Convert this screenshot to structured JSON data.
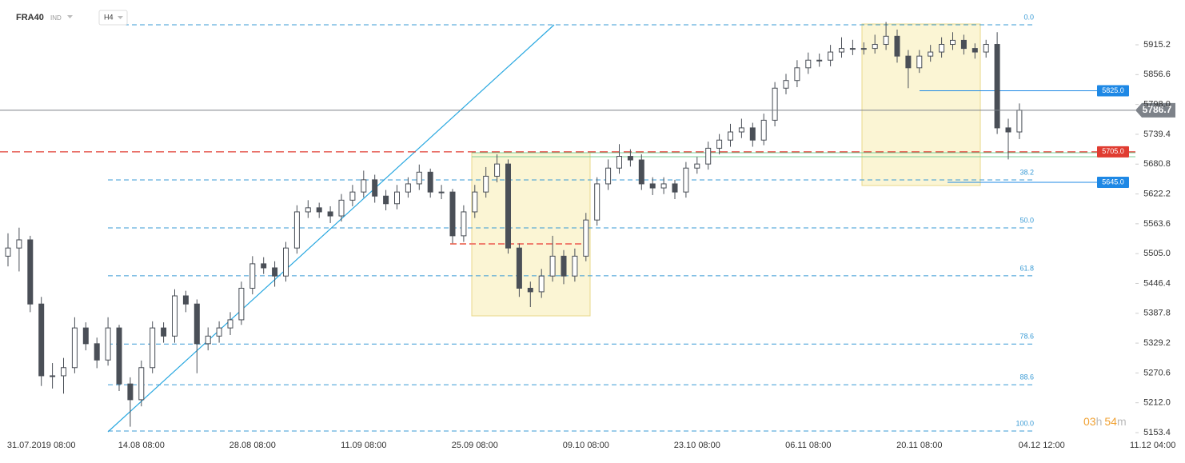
{
  "chart_data": {
    "type": "candlestick",
    "symbol": "FRA40",
    "market": "IND",
    "interval": "H4",
    "categories": [
      null,
      null,
      null,
      "31.07.2019 08:00",
      null,
      null,
      null,
      null,
      null,
      null,
      null,
      null,
      "14.08 08:00",
      null,
      null,
      null,
      null,
      null,
      null,
      null,
      null,
      null,
      "28.08 08:00",
      null,
      null,
      null,
      null,
      null,
      null,
      null,
      null,
      null,
      "11.09 08:00",
      null,
      null,
      null,
      null,
      null,
      null,
      null,
      null,
      null,
      "25.09 08:00",
      null,
      null,
      null,
      null,
      null,
      null,
      null,
      null,
      null,
      "09.10 08:00",
      null,
      null,
      null,
      null,
      null,
      null,
      null,
      null,
      null,
      "23.10 08:00",
      null,
      null,
      null,
      null,
      null,
      null,
      null,
      null,
      null,
      "06.11 08:00",
      null,
      null,
      null,
      null,
      null,
      null,
      null,
      null,
      null,
      "20.11 08:00",
      null,
      null,
      null,
      null,
      null,
      null,
      null,
      null,
      null,
      null,
      "04.12 12:00",
      null,
      null,
      null,
      null,
      null,
      null,
      null,
      null,
      null,
      "11.12 04:00"
    ],
    "open": [
      5500,
      5516,
      5532,
      5406,
      5265,
      5265,
      5281,
      5359,
      5328,
      5296,
      5359,
      5249,
      5218,
      5281,
      5359,
      5343,
      5422,
      5406,
      5328,
      5343,
      5359,
      5375,
      5437,
      5485,
      5477,
      5461,
      5516,
      5587,
      5595,
      5587,
      5579,
      5610,
      5626,
      5650,
      5618,
      5603,
      5626,
      5642,
      5665,
      5626,
      5626,
      5540,
      5587,
      5626,
      5657,
      5681,
      5516,
      5437,
      5430,
      5461,
      5500,
      5461,
      5500,
      5571,
      5642,
      5673,
      5696,
      5689,
      5642,
      5634,
      5642,
      5626,
      5673,
      5681,
      5712,
      5728,
      5744,
      5752,
      5728,
      5767,
      5830,
      5845,
      5870,
      5885,
      5885,
      5901,
      5908,
      5908,
      5908,
      5916,
      5932,
      5893,
      5870,
      5893,
      5901,
      5916,
      5924,
      5908,
      5901,
      5916,
      5752,
      5744,
      null,
      null,
      null,
      null,
      null,
      null,
      null,
      null,
      null,
      null,
      null,
      null
    ],
    "high": [
      5545,
      5556,
      5540,
      5420,
      5290,
      5300,
      5380,
      5370,
      5340,
      5380,
      5365,
      5262,
      5295,
      5372,
      5370,
      5435,
      5432,
      5415,
      5360,
      5372,
      5390,
      5450,
      5500,
      5498,
      5490,
      5528,
      5600,
      5610,
      5605,
      5598,
      5622,
      5640,
      5668,
      5660,
      5630,
      5640,
      5655,
      5680,
      5672,
      5640,
      5632,
      5600,
      5640,
      5675,
      5700,
      5690,
      5525,
      5450,
      5475,
      5540,
      5512,
      5515,
      5585,
      5655,
      5690,
      5720,
      5710,
      5700,
      5655,
      5655,
      5650,
      5685,
      5695,
      5725,
      5740,
      5760,
      5770,
      5762,
      5780,
      5842,
      5858,
      5885,
      5900,
      5898,
      5915,
      5930,
      5925,
      5920,
      5935,
      5960,
      5945,
      5905,
      5905,
      5915,
      5930,
      5940,
      5935,
      5918,
      5925,
      5940,
      5770,
      5800,
      null,
      null,
      null,
      null,
      null,
      null,
      null,
      null,
      null,
      null,
      null,
      null
    ],
    "low": [
      5480,
      5470,
      5390,
      5245,
      5240,
      5230,
      5270,
      5315,
      5280,
      5285,
      5235,
      5165,
      5205,
      5270,
      5330,
      5330,
      5390,
      5270,
      5315,
      5330,
      5345,
      5365,
      5425,
      5465,
      5440,
      5450,
      5505,
      5575,
      5575,
      5565,
      5568,
      5598,
      5615,
      5605,
      5590,
      5592,
      5615,
      5630,
      5615,
      5612,
      5525,
      5528,
      5575,
      5615,
      5645,
      5505,
      5420,
      5400,
      5418,
      5450,
      5445,
      5450,
      5490,
      5560,
      5630,
      5662,
      5676,
      5630,
      5620,
      5622,
      5612,
      5615,
      5662,
      5670,
      5700,
      5715,
      5732,
      5715,
      5718,
      5755,
      5818,
      5832,
      5858,
      5872,
      5873,
      5890,
      5895,
      5896,
      5898,
      5905,
      5880,
      5830,
      5860,
      5882,
      5890,
      5905,
      5896,
      5888,
      5890,
      5740,
      5690,
      5730,
      null,
      null,
      null,
      null,
      null,
      null,
      null,
      null,
      null,
      null,
      null,
      null
    ],
    "close": [
      5516,
      5532,
      5406,
      5265,
      5265,
      5281,
      5359,
      5328,
      5296,
      5359,
      5249,
      5218,
      5281,
      5359,
      5343,
      5422,
      5406,
      5328,
      5343,
      5359,
      5375,
      5437,
      5485,
      5477,
      5461,
      5516,
      5587,
      5595,
      5587,
      5579,
      5610,
      5626,
      5650,
      5618,
      5603,
      5626,
      5642,
      5665,
      5626,
      5626,
      5540,
      5587,
      5626,
      5657,
      5681,
      5516,
      5437,
      5430,
      5461,
      5500,
      5461,
      5500,
      5571,
      5642,
      5673,
      5696,
      5689,
      5642,
      5634,
      5642,
      5626,
      5673,
      5681,
      5712,
      5728,
      5744,
      5752,
      5728,
      5767,
      5830,
      5845,
      5870,
      5885,
      5885,
      5901,
      5908,
      5908,
      5908,
      5916,
      5932,
      5893,
      5870,
      5893,
      5901,
      5916,
      5924,
      5908,
      5901,
      5916,
      5752,
      5744,
      5786.7,
      null,
      null,
      null,
      null,
      null,
      null,
      null,
      null,
      null,
      null,
      null,
      null
    ],
    "up_color": "#ffffff",
    "down_color": "#4a4f57",
    "ylim": [
      5131.4,
      6003.2
    ],
    "yticks": [
      5153.4,
      {
        "value": 5212,
        "label": "5212.0"
      },
      5270.6,
      5329.2,
      5387.8,
      5446.4,
      {
        "value": 5505,
        "label": "5505.0"
      },
      5563.6,
      5622.2,
      5680.8,
      5739.4,
      {
        "value": 5798,
        "label": "5798.0"
      },
      5856.6,
      5915.2
    ],
    "fib_levels": [
      {
        "value": 5954.5,
        "label": "0.0"
      },
      {
        "value": 5649.7,
        "label": "38.2"
      },
      {
        "value": 5555.5,
        "label": "50.0"
      },
      {
        "value": 5461.4,
        "label": "61.8"
      },
      {
        "value": 5327.3,
        "label": "78.6"
      },
      {
        "value": 5247.5,
        "label": "88.6"
      },
      {
        "value": 5156.5,
        "label": "100.0"
      }
    ],
    "fib_color": "#3a9bd5",
    "price_levels": [
      {
        "value": 5825,
        "label": "5825.0",
        "color": "#1e88e5"
      },
      {
        "value": 5705,
        "label": "5705.0",
        "color": "#e03c31"
      },
      {
        "value": 5645,
        "label": "5645.0",
        "color": "#1e88e5"
      }
    ],
    "last_price": {
      "value": 5786.7,
      "label": "5786.7",
      "color": "#7d8289"
    },
    "timer": {
      "hours": "03",
      "h": "h",
      "minutes": "54",
      "m": "m"
    }
  }
}
